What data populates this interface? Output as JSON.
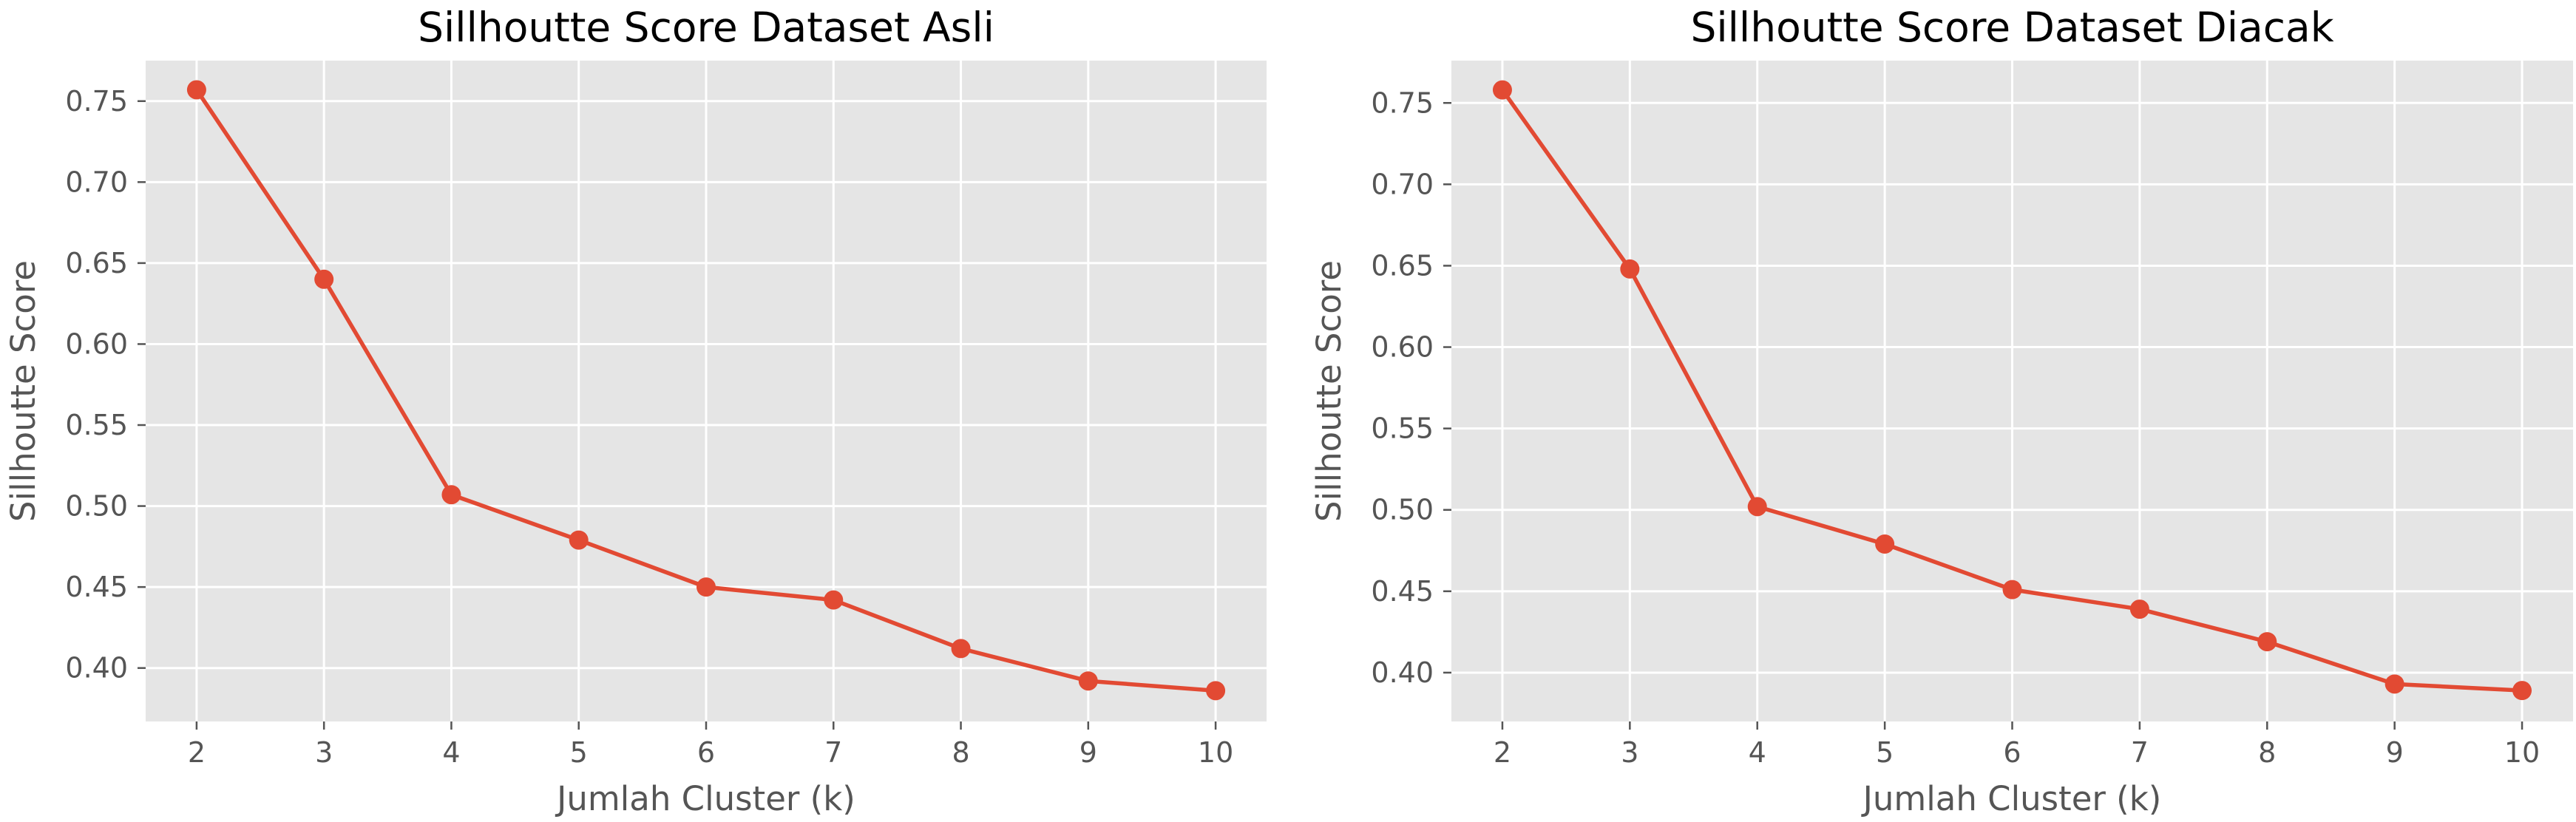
{
  "chart_data": [
    {
      "type": "line",
      "title": "Sillhoutte Score Dataset Asli",
      "xlabel": "Jumlah Cluster (k)",
      "ylabel": "Sillhoutte Score",
      "x": [
        2,
        3,
        4,
        5,
        6,
        7,
        8,
        9,
        10
      ],
      "series": [
        {
          "values": [
            0.757,
            0.64,
            0.507,
            0.479,
            0.45,
            0.442,
            0.412,
            0.392,
            0.386
          ],
          "color": "#E24A33"
        }
      ],
      "xlim": [
        1.6,
        10.4
      ],
      "ylim": [
        0.367,
        0.775
      ],
      "xticks": [
        "2",
        "3",
        "4",
        "5",
        "6",
        "7",
        "8",
        "9",
        "10"
      ],
      "yticks": [
        "0.40",
        "0.45",
        "0.50",
        "0.55",
        "0.60",
        "0.65",
        "0.70",
        "0.75"
      ],
      "grid": true,
      "marker": "circle"
    },
    {
      "type": "line",
      "title": "Sillhoutte Score Dataset Diacak",
      "xlabel": "Jumlah Cluster (k)",
      "ylabel": "Sillhoutte Score",
      "x": [
        2,
        3,
        4,
        5,
        6,
        7,
        8,
        9,
        10
      ],
      "series": [
        {
          "values": [
            0.758,
            0.648,
            0.502,
            0.479,
            0.451,
            0.439,
            0.419,
            0.393,
            0.389
          ],
          "color": "#E24A33"
        }
      ],
      "xlim": [
        1.6,
        10.4
      ],
      "ylim": [
        0.37,
        0.776
      ],
      "xticks": [
        "2",
        "3",
        "4",
        "5",
        "6",
        "7",
        "8",
        "9",
        "10"
      ],
      "yticks": [
        "0.40",
        "0.45",
        "0.50",
        "0.55",
        "0.60",
        "0.65",
        "0.70",
        "0.75"
      ],
      "grid": true,
      "marker": "circle"
    }
  ]
}
